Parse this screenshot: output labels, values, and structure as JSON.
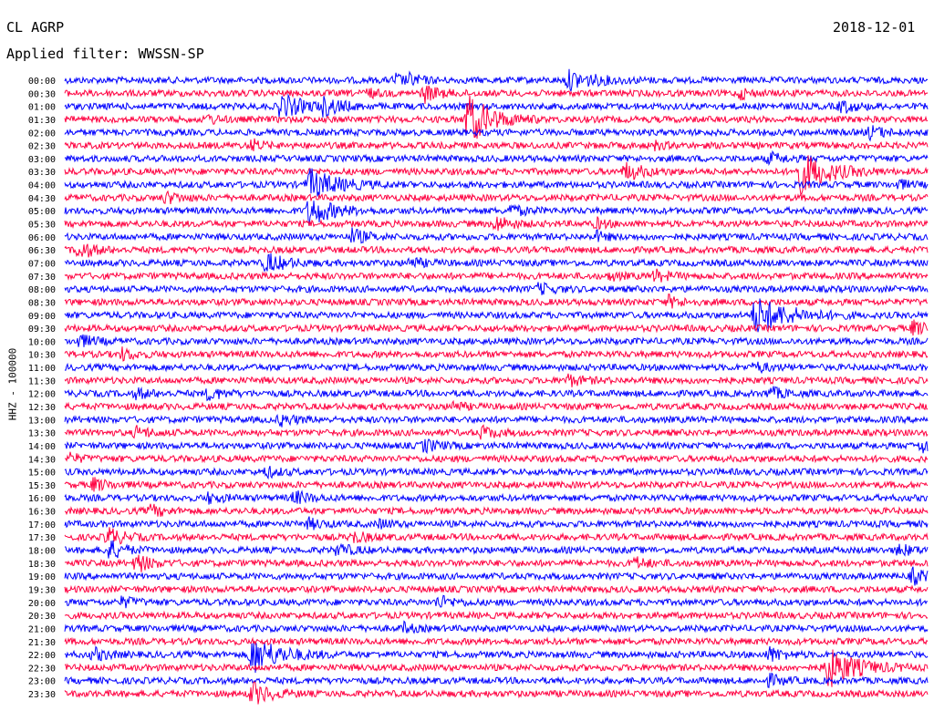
{
  "header": {
    "station": "CL AGRP",
    "date": "2018-12-01",
    "filter": "Applied filter: WWSSN-SP"
  },
  "axis": {
    "ylabel": "HHZ - 100000"
  },
  "colors": {
    "trace_a": "#0000ff",
    "trace_b": "#ff0040",
    "text": "#000000",
    "background": "#ffffff"
  },
  "chart_data": {
    "type": "helicorder",
    "ylabel": "HHZ - 100000",
    "row_interval_minutes": 30,
    "row_labels": [
      "00:00",
      "00:30",
      "01:00",
      "01:30",
      "02:00",
      "02:30",
      "03:00",
      "03:30",
      "04:00",
      "04:30",
      "05:00",
      "05:30",
      "06:00",
      "06:30",
      "07:00",
      "07:30",
      "08:00",
      "08:30",
      "09:00",
      "09:30",
      "10:00",
      "10:30",
      "11:00",
      "11:30",
      "12:00",
      "12:30",
      "13:00",
      "13:30",
      "14:00",
      "14:30",
      "15:00",
      "15:30",
      "16:00",
      "16:30",
      "17:00",
      "17:30",
      "18:00",
      "18:30",
      "19:00",
      "19:30",
      "20:00",
      "20:30",
      "21:00",
      "21:30",
      "22:00",
      "22:30",
      "23:00",
      "23:30"
    ],
    "trace_colors": [
      "#0000ff",
      "#ff0040"
    ],
    "events": [
      {
        "row": 0,
        "minute": 11.5,
        "amp": 1.6,
        "width": 2
      },
      {
        "row": 0,
        "minute": 17.5,
        "amp": 2.4,
        "width": 6
      },
      {
        "row": 1,
        "minute": 12.5,
        "amp": 2.2,
        "width": 3
      },
      {
        "row": 1,
        "minute": 10.5,
        "amp": 1.2,
        "width": 2
      },
      {
        "row": 0,
        "minute": 12.0,
        "amp": 1.2,
        "width": 3
      },
      {
        "row": 1,
        "minute": 23.5,
        "amp": 1.4,
        "width": 2
      },
      {
        "row": 2,
        "minute": 7.5,
        "amp": 3.2,
        "width": 5
      },
      {
        "row": 2,
        "minute": 9.0,
        "amp": 2.0,
        "width": 4
      },
      {
        "row": 2,
        "minute": 27.0,
        "amp": 1.6,
        "width": 3
      },
      {
        "row": 3,
        "minute": 5.0,
        "amp": 1.2,
        "width": 2
      },
      {
        "row": 3,
        "minute": 14.0,
        "amp": 7.0,
        "width": 5
      },
      {
        "row": 4,
        "minute": 28.0,
        "amp": 1.6,
        "width": 3
      },
      {
        "row": 5,
        "minute": 6.5,
        "amp": 1.6,
        "width": 2
      },
      {
        "row": 5,
        "minute": 20.5,
        "amp": 1.0,
        "width": 2
      },
      {
        "row": 6,
        "minute": 24.5,
        "amp": 1.4,
        "width": 3
      },
      {
        "row": 7,
        "minute": 19.5,
        "amp": 2.2,
        "width": 4
      },
      {
        "row": 7,
        "minute": 25.5,
        "amp": 6.0,
        "width": 6
      },
      {
        "row": 8,
        "minute": 8.5,
        "amp": 4.0,
        "width": 6
      },
      {
        "row": 8,
        "minute": 29.0,
        "amp": 1.2,
        "width": 2
      },
      {
        "row": 9,
        "minute": 3.5,
        "amp": 1.4,
        "width": 3
      },
      {
        "row": 10,
        "minute": 15.5,
        "amp": 1.4,
        "width": 3
      },
      {
        "row": 10,
        "minute": 8.5,
        "amp": 3.8,
        "width": 5
      },
      {
        "row": 11,
        "minute": 15.0,
        "amp": 2.0,
        "width": 3
      },
      {
        "row": 11,
        "minute": 18.5,
        "amp": 1.2,
        "width": 2
      },
      {
        "row": 12,
        "minute": 10.0,
        "amp": 2.0,
        "width": 3
      },
      {
        "row": 12,
        "minute": 18.5,
        "amp": 1.2,
        "width": 2
      },
      {
        "row": 13,
        "minute": 0.5,
        "amp": 2.4,
        "width": 3
      },
      {
        "row": 14,
        "minute": 7.0,
        "amp": 2.6,
        "width": 4
      },
      {
        "row": 14,
        "minute": 12.0,
        "amp": 1.2,
        "width": 3
      },
      {
        "row": 15,
        "minute": 20.5,
        "amp": 1.4,
        "width": 3
      },
      {
        "row": 15,
        "minute": 19.0,
        "amp": 1.0,
        "width": 2
      },
      {
        "row": 16,
        "minute": 16.5,
        "amp": 1.4,
        "width": 3
      },
      {
        "row": 17,
        "minute": 21.0,
        "amp": 1.4,
        "width": 3
      },
      {
        "row": 18,
        "minute": 24.0,
        "amp": 5.0,
        "width": 7
      },
      {
        "row": 19,
        "minute": 29.5,
        "amp": 1.8,
        "width": 3
      },
      {
        "row": 20,
        "minute": 0.5,
        "amp": 1.6,
        "width": 3
      },
      {
        "row": 21,
        "minute": 2.0,
        "amp": 1.4,
        "width": 3
      },
      {
        "row": 22,
        "minute": 24.0,
        "amp": 1.2,
        "width": 3
      },
      {
        "row": 23,
        "minute": 17.5,
        "amp": 1.4,
        "width": 3
      },
      {
        "row": 24,
        "minute": 24.5,
        "amp": 1.6,
        "width": 3
      },
      {
        "row": 24,
        "minute": 2.5,
        "amp": 1.2,
        "width": 3
      },
      {
        "row": 24,
        "minute": 5.0,
        "amp": 1.6,
        "width": 3
      },
      {
        "row": 25,
        "minute": 13.5,
        "amp": 1.2,
        "width": 2
      },
      {
        "row": 26,
        "minute": 7.5,
        "amp": 1.4,
        "width": 3
      },
      {
        "row": 27,
        "minute": 2.5,
        "amp": 1.4,
        "width": 3
      },
      {
        "row": 27,
        "minute": 14.5,
        "amp": 1.6,
        "width": 3
      },
      {
        "row": 28,
        "minute": 12.5,
        "amp": 1.6,
        "width": 3
      },
      {
        "row": 28,
        "minute": 29.8,
        "amp": 1.8,
        "width": 2
      },
      {
        "row": 29,
        "minute": 0.2,
        "amp": 1.2,
        "width": 2
      },
      {
        "row": 30,
        "minute": 7.0,
        "amp": 1.2,
        "width": 3
      },
      {
        "row": 31,
        "minute": 1.0,
        "amp": 1.6,
        "width": 3
      },
      {
        "row": 32,
        "minute": 5.0,
        "amp": 1.2,
        "width": 3
      },
      {
        "row": 32,
        "minute": 8.0,
        "amp": 1.6,
        "width": 3
      },
      {
        "row": 33,
        "minute": 3.0,
        "amp": 1.4,
        "width": 3
      },
      {
        "row": 34,
        "minute": 8.5,
        "amp": 1.2,
        "width": 3
      },
      {
        "row": 34,
        "minute": 11.0,
        "amp": 1.2,
        "width": 2
      },
      {
        "row": 35,
        "minute": 1.5,
        "amp": 2.6,
        "width": 3
      },
      {
        "row": 35,
        "minute": 10.0,
        "amp": 1.4,
        "width": 3
      },
      {
        "row": 36,
        "minute": 1.5,
        "amp": 2.8,
        "width": 3
      },
      {
        "row": 36,
        "minute": 9.5,
        "amp": 1.6,
        "width": 3
      },
      {
        "row": 36,
        "minute": 29.0,
        "amp": 1.4,
        "width": 3
      },
      {
        "row": 37,
        "minute": 2.5,
        "amp": 2.4,
        "width": 3
      },
      {
        "row": 37,
        "minute": 19.8,
        "amp": 1.4,
        "width": 3
      },
      {
        "row": 38,
        "minute": 29.5,
        "amp": 2.0,
        "width": 3
      },
      {
        "row": 40,
        "minute": 2.0,
        "amp": 1.2,
        "width": 3
      },
      {
        "row": 40,
        "minute": 13.0,
        "amp": 1.6,
        "width": 3
      },
      {
        "row": 42,
        "minute": 11.8,
        "amp": 1.2,
        "width": 2
      },
      {
        "row": 44,
        "minute": 1.0,
        "amp": 1.6,
        "width": 3
      },
      {
        "row": 44,
        "minute": 6.5,
        "amp": 5.0,
        "width": 6
      },
      {
        "row": 44,
        "minute": 24.5,
        "amp": 1.8,
        "width": 3
      },
      {
        "row": 45,
        "minute": 26.5,
        "amp": 5.5,
        "width": 6
      },
      {
        "row": 46,
        "minute": 24.5,
        "amp": 1.4,
        "width": 3
      },
      {
        "row": 47,
        "minute": 6.5,
        "amp": 3.0,
        "width": 4
      }
    ]
  }
}
